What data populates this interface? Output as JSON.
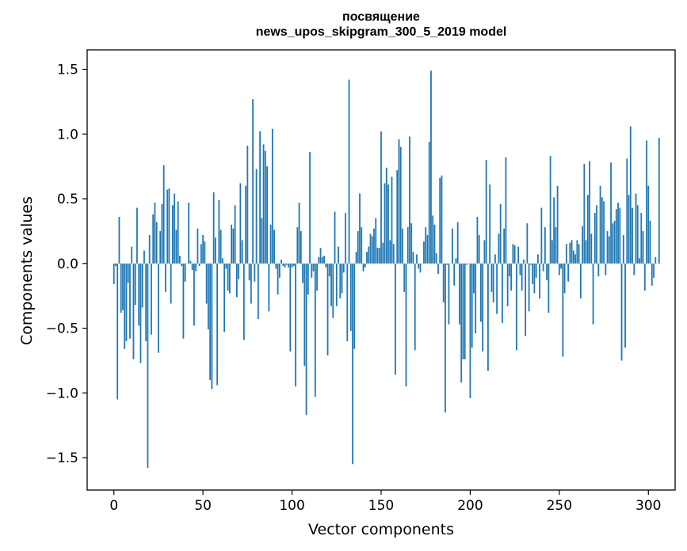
{
  "chart_data": {
    "type": "bar",
    "title_line1": "посвящение",
    "title_line2": "news_upos_skipgram_300_5_2019 model",
    "xlabel": "Vector components",
    "ylabel": "Components values",
    "xlim": [
      -15,
      315
    ],
    "ylim": [
      -1.75,
      1.65
    ],
    "xticks": [
      0,
      50,
      100,
      150,
      200,
      250,
      300
    ],
    "yticks": [
      -1.5,
      -1.0,
      -0.5,
      0.0,
      0.5,
      1.0,
      1.5
    ],
    "ytick_labels": [
      "−1.5",
      "−1.0",
      "−0.5",
      "0.0",
      "0.5",
      "1.0",
      "1.5"
    ],
    "bar_color": "#1f77b4",
    "values": [
      -0.16,
      -0.02,
      -1.05,
      0.36,
      -0.38,
      -0.36,
      -0.66,
      -0.6,
      -0.15,
      -0.58,
      0.13,
      -0.74,
      -0.32,
      0.43,
      -0.48,
      -0.77,
      -0.34,
      0.1,
      -0.6,
      -1.58,
      0.22,
      -0.55,
      0.38,
      0.47,
      0.32,
      -0.69,
      0.25,
      0.46,
      0.76,
      -0.22,
      0.57,
      0.58,
      -0.31,
      0.45,
      0.54,
      0.26,
      0.48,
      0.06,
      -0.02,
      -0.58,
      -0.14,
      0.0,
      0.47,
      0.02,
      -0.05,
      -0.48,
      -0.06,
      0.27,
      -0.02,
      0.15,
      0.22,
      0.17,
      -0.31,
      -0.51,
      -0.9,
      -0.97,
      0.55,
      0.2,
      -0.94,
      0.49,
      0.26,
      0.04,
      -0.53,
      -0.04,
      -0.21,
      -0.23,
      0.3,
      0.27,
      0.45,
      -0.26,
      -0.12,
      0.62,
      0.18,
      -0.59,
      0.6,
      0.91,
      -0.13,
      -0.31,
      1.27,
      -0.14,
      0.73,
      -0.43,
      1.02,
      0.35,
      0.92,
      0.87,
      0.75,
      -0.37,
      0.3,
      1.04,
      0.26,
      -0.04,
      -0.24,
      -0.11,
      0.03,
      -0.02,
      -0.03,
      -0.01,
      -0.03,
      -0.68,
      -0.03,
      -0.02,
      -0.95,
      0.28,
      0.47,
      0.25,
      -0.15,
      -0.79,
      -1.17,
      -0.24,
      0.86,
      -0.11,
      -0.06,
      -1.03,
      -0.21,
      0.05,
      0.12,
      0.05,
      0.06,
      -0.03,
      -0.71,
      -0.1,
      -0.33,
      -0.42,
      0.4,
      -0.33,
      0.13,
      -0.27,
      -0.23,
      -0.07,
      0.39,
      -0.6,
      1.42,
      -0.52,
      -1.55,
      -0.66,
      0.09,
      0.25,
      0.54,
      0.28,
      -0.06,
      -0.03,
      0.09,
      0.13,
      0.23,
      0.21,
      0.27,
      0.35,
      0.12,
      0.12,
      1.02,
      0.16,
      0.62,
      0.74,
      0.61,
      0.18,
      0.67,
      0.15,
      -0.86,
      0.72,
      0.96,
      0.9,
      0.27,
      -0.22,
      -0.95,
      0.28,
      0.98,
      0.31,
      0.09,
      -0.67,
      0.07,
      -0.04,
      -0.07,
      0.0,
      0.17,
      0.28,
      0.22,
      0.94,
      1.49,
      0.37,
      0.3,
      0.08,
      -0.08,
      0.66,
      0.68,
      -0.3,
      -1.15,
      -0.01,
      -0.47,
      0.0,
      0.27,
      -0.17,
      0.04,
      0.32,
      -0.47,
      -0.92,
      -0.74,
      -0.74,
      -0.01,
      0.0,
      -1.04,
      -0.65,
      -0.23,
      -0.54,
      0.36,
      0.22,
      -0.45,
      -0.68,
      0.18,
      0.8,
      -0.83,
      0.61,
      -0.22,
      -0.3,
      0.07,
      -0.39,
      0.23,
      0.46,
      -0.46,
      0.27,
      0.82,
      -0.33,
      -0.1,
      -0.21,
      0.15,
      0.14,
      -0.67,
      0.13,
      -0.09,
      -0.21,
      0.03,
      -0.56,
      0.31,
      -0.37,
      -0.01,
      -0.16,
      -0.23,
      -0.11,
      0.07,
      -0.27,
      0.43,
      -0.06,
      0.28,
      -0.13,
      -0.38,
      0.83,
      0.18,
      0.51,
      0.28,
      0.6,
      -0.09,
      -0.04,
      -0.72,
      -0.23,
      0.15,
      -0.14,
      0.16,
      0.18,
      0.1,
      0.07,
      0.18,
      0.15,
      -0.27,
      0.29,
      0.77,
      0.18,
      0.53,
      0.79,
      0.23,
      -0.47,
      0.39,
      0.45,
      -0.1,
      0.6,
      0.51,
      0.48,
      -0.09,
      0.25,
      0.21,
      0.78,
      0.31,
      0.33,
      0.42,
      0.47,
      0.43,
      -0.75,
      0.22,
      -0.65,
      0.81,
      0.53,
      1.06,
      0.43,
      -0.09,
      0.54,
      0.45,
      0.04,
      0.39,
      0.25,
      -0.21,
      0.95,
      0.6,
      0.33,
      -0.17,
      -0.11,
      0.05,
      0.0,
      0.97,
      0.0
    ]
  }
}
